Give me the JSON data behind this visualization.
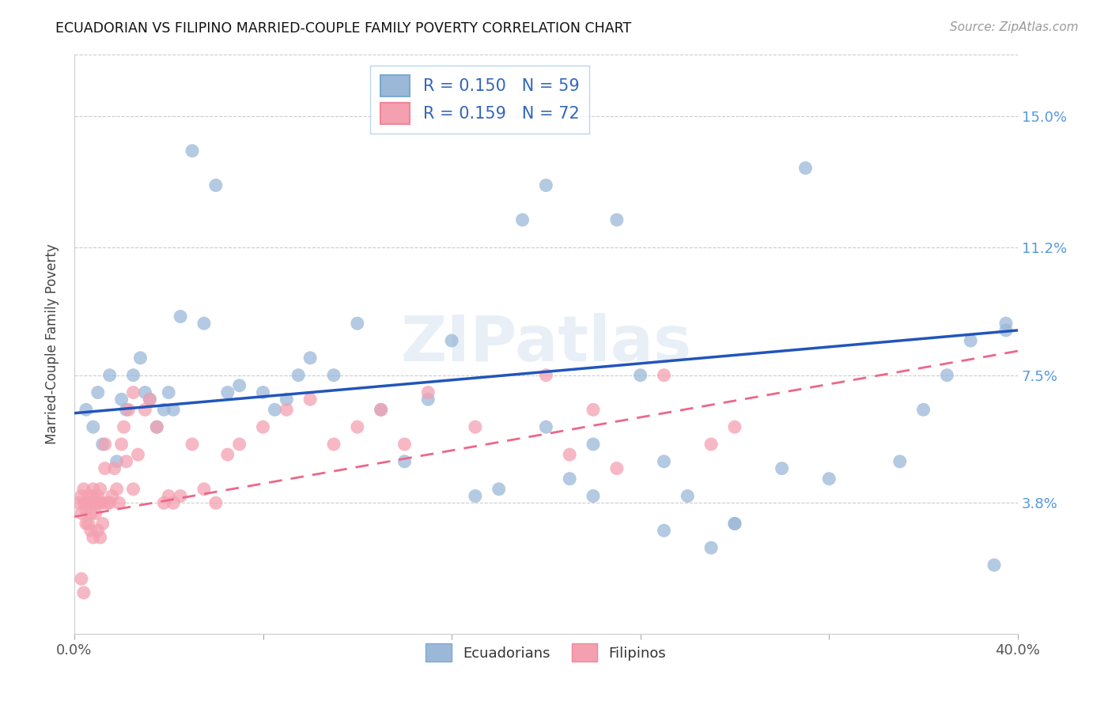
{
  "title": "ECUADORIAN VS FILIPINO MARRIED-COUPLE FAMILY POVERTY CORRELATION CHART",
  "source": "Source: ZipAtlas.com",
  "ylabel": "Married-Couple Family Poverty",
  "xlim": [
    0.0,
    0.4
  ],
  "ylim": [
    0.0,
    0.168
  ],
  "ytick_vals": [
    0.038,
    0.075,
    0.112,
    0.15
  ],
  "ytick_labels": [
    "3.8%",
    "7.5%",
    "11.2%",
    "15.0%"
  ],
  "blue_color": "#9BB8D9",
  "pink_color": "#F4A0B0",
  "blue_line_color": "#2255BB",
  "pink_line_color": "#EE6688",
  "R_blue": 0.15,
  "N_blue": 59,
  "R_pink": 0.159,
  "N_pink": 72,
  "watermark": "ZIPatlas",
  "background_color": "#FFFFFF",
  "blue_line_x0": 0.0,
  "blue_line_y0": 0.064,
  "blue_line_x1": 0.4,
  "blue_line_y1": 0.088,
  "pink_line_x0": 0.0,
  "pink_line_y0": 0.034,
  "pink_line_x1": 0.4,
  "pink_line_y1": 0.082,
  "blue_x": [
    0.005,
    0.008,
    0.01,
    0.012,
    0.015,
    0.018,
    0.02,
    0.022,
    0.025,
    0.028,
    0.03,
    0.032,
    0.035,
    0.038,
    0.04,
    0.042,
    0.045,
    0.05,
    0.055,
    0.06,
    0.065,
    0.07,
    0.08,
    0.085,
    0.09,
    0.095,
    0.1,
    0.11,
    0.12,
    0.13,
    0.14,
    0.15,
    0.16,
    0.17,
    0.18,
    0.19,
    0.2,
    0.21,
    0.22,
    0.23,
    0.24,
    0.25,
    0.26,
    0.27,
    0.28,
    0.3,
    0.31,
    0.32,
    0.35,
    0.36,
    0.37,
    0.38,
    0.39,
    0.395,
    0.2,
    0.22,
    0.25,
    0.28,
    0.395
  ],
  "blue_y": [
    0.065,
    0.06,
    0.07,
    0.055,
    0.075,
    0.05,
    0.068,
    0.065,
    0.075,
    0.08,
    0.07,
    0.068,
    0.06,
    0.065,
    0.07,
    0.065,
    0.092,
    0.14,
    0.09,
    0.13,
    0.07,
    0.072,
    0.07,
    0.065,
    0.068,
    0.075,
    0.08,
    0.075,
    0.09,
    0.065,
    0.05,
    0.068,
    0.085,
    0.04,
    0.042,
    0.12,
    0.13,
    0.045,
    0.055,
    0.12,
    0.075,
    0.05,
    0.04,
    0.025,
    0.032,
    0.048,
    0.135,
    0.045,
    0.05,
    0.065,
    0.075,
    0.085,
    0.02,
    0.088,
    0.06,
    0.04,
    0.03,
    0.032,
    0.09
  ],
  "pink_x": [
    0.002,
    0.003,
    0.003,
    0.004,
    0.004,
    0.005,
    0.005,
    0.005,
    0.006,
    0.006,
    0.006,
    0.007,
    0.007,
    0.007,
    0.008,
    0.008,
    0.008,
    0.009,
    0.009,
    0.01,
    0.01,
    0.01,
    0.011,
    0.011,
    0.011,
    0.012,
    0.012,
    0.013,
    0.013,
    0.014,
    0.015,
    0.016,
    0.017,
    0.018,
    0.019,
    0.02,
    0.021,
    0.022,
    0.023,
    0.025,
    0.025,
    0.027,
    0.03,
    0.032,
    0.035,
    0.038,
    0.04,
    0.042,
    0.045,
    0.05,
    0.055,
    0.06,
    0.065,
    0.07,
    0.08,
    0.09,
    0.1,
    0.11,
    0.12,
    0.13,
    0.14,
    0.15,
    0.17,
    0.2,
    0.21,
    0.22,
    0.23,
    0.25,
    0.27,
    0.28,
    0.003,
    0.004
  ],
  "pink_y": [
    0.038,
    0.04,
    0.035,
    0.042,
    0.038,
    0.036,
    0.038,
    0.032,
    0.04,
    0.032,
    0.038,
    0.035,
    0.038,
    0.03,
    0.04,
    0.042,
    0.028,
    0.035,
    0.038,
    0.038,
    0.04,
    0.03,
    0.038,
    0.042,
    0.028,
    0.038,
    0.032,
    0.048,
    0.055,
    0.038,
    0.038,
    0.04,
    0.048,
    0.042,
    0.038,
    0.055,
    0.06,
    0.05,
    0.065,
    0.07,
    0.042,
    0.052,
    0.065,
    0.068,
    0.06,
    0.038,
    0.04,
    0.038,
    0.04,
    0.055,
    0.042,
    0.038,
    0.052,
    0.055,
    0.06,
    0.065,
    0.068,
    0.055,
    0.06,
    0.065,
    0.055,
    0.07,
    0.06,
    0.075,
    0.052,
    0.065,
    0.048,
    0.075,
    0.055,
    0.06,
    0.016,
    0.012
  ]
}
